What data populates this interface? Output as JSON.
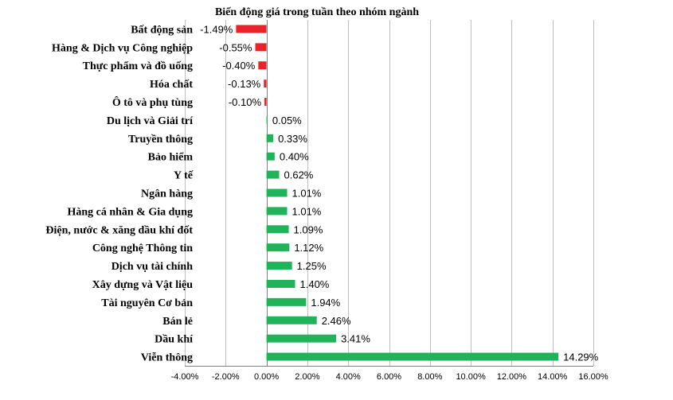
{
  "chart_data": {
    "type": "bar",
    "orientation": "horizontal",
    "title": "Biến động giá trong tuần theo nhóm ngành",
    "xlabel": "",
    "ylabel": "",
    "xlim": [
      -4,
      16
    ],
    "x_ticks": [
      -4,
      -2,
      0,
      2,
      4,
      6,
      8,
      10,
      12,
      14,
      16
    ],
    "x_tick_labels": [
      "-4.00%",
      "-2.00%",
      "0.00%",
      "2.00%",
      "4.00%",
      "6.00%",
      "8.00%",
      "10.00%",
      "12.00%",
      "14.00%",
      "16.00%"
    ],
    "grid": "vertical",
    "categories": [
      "Bất động sản",
      "Hàng & Dịch vụ Công nghiệp",
      "Thực phẩm và đồ uống",
      "Hóa chất",
      "Ô tô và phụ tùng",
      "Du lịch và Giải trí",
      "Truyền thông",
      "Bảo hiểm",
      "Y tế",
      "Ngân hàng",
      "Hàng cá nhân & Gia dụng",
      "Điện, nước & xăng dầu khí đốt",
      "Công nghệ Thông tin",
      "Dịch vụ tài chính",
      "Xây dựng và Vật liệu",
      "Tài nguyên Cơ bản",
      "Bán lẻ",
      "Dầu khí",
      "Viễn thông"
    ],
    "values": [
      -1.49,
      -0.55,
      -0.4,
      -0.13,
      -0.1,
      0.05,
      0.33,
      0.4,
      0.62,
      1.01,
      1.01,
      1.09,
      1.12,
      1.25,
      1.4,
      1.94,
      2.46,
      3.41,
      14.29
    ],
    "value_labels": [
      "-1.49%",
      "-0.55%",
      "-0.40%",
      "-0.13%",
      "-0.10%",
      "0.05%",
      "0.33%",
      "0.40%",
      "0.62%",
      "1.01%",
      "1.01%",
      "1.09%",
      "1.12%",
      "1.25%",
      "1.40%",
      "1.94%",
      "2.46%",
      "3.41%",
      "14.29%"
    ],
    "colors": {
      "negative": "#e8232a",
      "positive": "#21b35a"
    }
  }
}
